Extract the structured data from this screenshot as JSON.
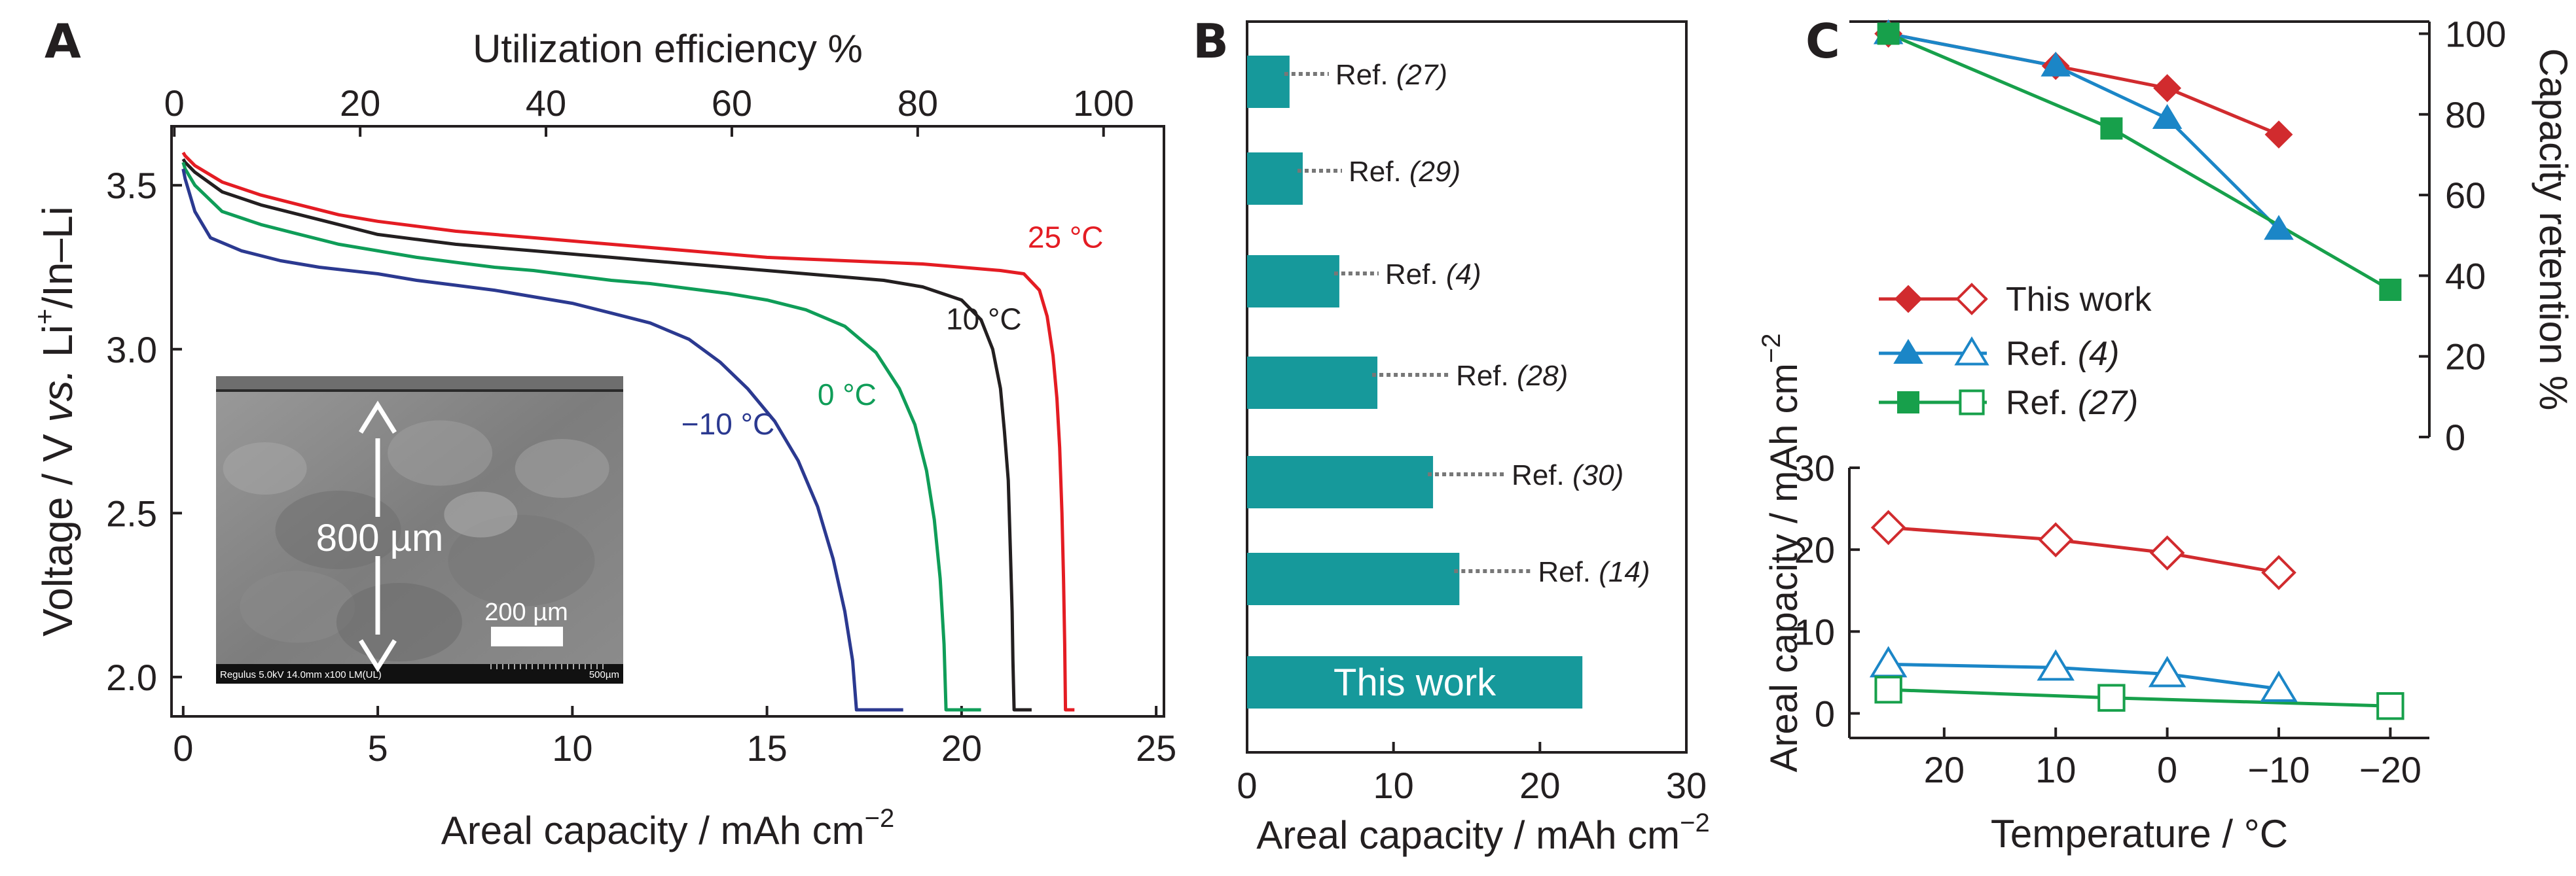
{
  "chart_data": [
    {
      "panel": "A",
      "type": "line",
      "xlabel": "Areal capacity / mAh cm",
      "xlabel_sup": "−2",
      "x2label": "Utilization efficiency %",
      "ylabel_pre": "Voltage / V ",
      "ylabel_vs": "vs.",
      "ylabel_mid": " Li",
      "ylabel_sup": "+",
      "ylabel_post": "/In–Li",
      "xlim": [
        -0.3,
        25.2
      ],
      "ylim": [
        1.88,
        3.68
      ],
      "x2lim": [
        -0.3,
        106.5
      ],
      "xticks": [
        0,
        5,
        10,
        15,
        20,
        25
      ],
      "x2ticks": [
        0,
        20,
        40,
        60,
        80,
        100
      ],
      "yticks": [
        2.0,
        2.5,
        3.0,
        3.5
      ],
      "series": [
        {
          "name": "25 °C",
          "color": "#e41c23",
          "label": "25 °C",
          "label_x": 21.7,
          "label_y": 3.31,
          "points": [
            [
              0,
              3.6
            ],
            [
              0.05,
              3.59
            ],
            [
              0.3,
              3.56
            ],
            [
              1,
              3.51
            ],
            [
              2,
              3.47
            ],
            [
              3,
              3.44
            ],
            [
              4,
              3.41
            ],
            [
              5,
              3.39
            ],
            [
              6,
              3.375
            ],
            [
              7,
              3.36
            ],
            [
              8,
              3.35
            ],
            [
              9,
              3.34
            ],
            [
              10,
              3.33
            ],
            [
              11,
              3.32
            ],
            [
              12,
              3.31
            ],
            [
              13,
              3.3
            ],
            [
              14,
              3.29
            ],
            [
              15,
              3.28
            ],
            [
              16,
              3.275
            ],
            [
              17,
              3.27
            ],
            [
              18,
              3.265
            ],
            [
              19,
              3.26
            ],
            [
              20,
              3.25
            ],
            [
              21,
              3.24
            ],
            [
              21.6,
              3.23
            ],
            [
              22,
              3.18
            ],
            [
              22.2,
              3.1
            ],
            [
              22.35,
              2.98
            ],
            [
              22.45,
              2.85
            ],
            [
              22.52,
              2.7
            ],
            [
              22.58,
              2.5
            ],
            [
              22.62,
              2.3
            ],
            [
              22.65,
              2.1
            ],
            [
              22.67,
              1.9
            ],
            [
              22.9,
              1.9
            ]
          ]
        },
        {
          "name": "10 °C",
          "color": "#231f20",
          "label": "10 °C",
          "label_x": 19.6,
          "label_y": 3.06,
          "points": [
            [
              0,
              3.58
            ],
            [
              0.05,
              3.57
            ],
            [
              0.3,
              3.54
            ],
            [
              1,
              3.48
            ],
            [
              2,
              3.44
            ],
            [
              3,
              3.41
            ],
            [
              4,
              3.38
            ],
            [
              5,
              3.35
            ],
            [
              6,
              3.335
            ],
            [
              7,
              3.32
            ],
            [
              8,
              3.31
            ],
            [
              9,
              3.3
            ],
            [
              10,
              3.29
            ],
            [
              11,
              3.28
            ],
            [
              12,
              3.27
            ],
            [
              13,
              3.26
            ],
            [
              14,
              3.25
            ],
            [
              15,
              3.24
            ],
            [
              16,
              3.23
            ],
            [
              17,
              3.22
            ],
            [
              18,
              3.21
            ],
            [
              19,
              3.19
            ],
            [
              20,
              3.15
            ],
            [
              20.5,
              3.09
            ],
            [
              20.8,
              3.0
            ],
            [
              21.0,
              2.88
            ],
            [
              21.1,
              2.75
            ],
            [
              21.2,
              2.6
            ],
            [
              21.25,
              2.4
            ],
            [
              21.3,
              2.2
            ],
            [
              21.32,
              2.05
            ],
            [
              21.35,
              1.9
            ],
            [
              21.8,
              1.9
            ]
          ]
        },
        {
          "name": "0 °C",
          "color": "#0f9d58",
          "label": "0 °C",
          "label_x": 16.3,
          "label_y": 2.83,
          "points": [
            [
              0,
              3.57
            ],
            [
              0.05,
              3.55
            ],
            [
              0.3,
              3.5
            ],
            [
              1,
              3.42
            ],
            [
              2,
              3.38
            ],
            [
              3,
              3.35
            ],
            [
              4,
              3.32
            ],
            [
              5,
              3.3
            ],
            [
              6,
              3.28
            ],
            [
              7,
              3.265
            ],
            [
              8,
              3.25
            ],
            [
              9,
              3.24
            ],
            [
              10,
              3.225
            ],
            [
              11,
              3.21
            ],
            [
              12,
              3.2
            ],
            [
              13,
              3.185
            ],
            [
              14,
              3.17
            ],
            [
              15,
              3.15
            ],
            [
              16,
              3.12
            ],
            [
              17,
              3.07
            ],
            [
              17.8,
              2.99
            ],
            [
              18.4,
              2.88
            ],
            [
              18.8,
              2.77
            ],
            [
              19.1,
              2.63
            ],
            [
              19.3,
              2.48
            ],
            [
              19.45,
              2.3
            ],
            [
              19.55,
              2.1
            ],
            [
              19.6,
              1.9
            ],
            [
              20.5,
              1.9
            ]
          ]
        },
        {
          "name": "−10 °C",
          "color": "#2b3990",
          "label": "−10 °C",
          "label_x": 12.8,
          "label_y": 2.74,
          "points": [
            [
              0,
              3.55
            ],
            [
              0.05,
              3.52
            ],
            [
              0.3,
              3.42
            ],
            [
              0.7,
              3.34
            ],
            [
              1.5,
              3.3
            ],
            [
              2.5,
              3.27
            ],
            [
              3.5,
              3.25
            ],
            [
              5,
              3.23
            ],
            [
              6,
              3.21
            ],
            [
              7,
              3.195
            ],
            [
              8,
              3.18
            ],
            [
              9,
              3.16
            ],
            [
              10,
              3.14
            ],
            [
              11,
              3.11
            ],
            [
              12,
              3.08
            ],
            [
              13,
              3.03
            ],
            [
              13.8,
              2.96
            ],
            [
              14.5,
              2.88
            ],
            [
              15.2,
              2.78
            ],
            [
              15.8,
              2.66
            ],
            [
              16.3,
              2.52
            ],
            [
              16.7,
              2.36
            ],
            [
              17.0,
              2.2
            ],
            [
              17.2,
              2.05
            ],
            [
              17.3,
              1.9
            ],
            [
              18.5,
              1.9
            ]
          ]
        }
      ],
      "inset": {
        "scale_label": "800 µm",
        "scalebar_label": "200 µm",
        "sem_footer_left": "Regulus 5.0kV 14.0mm x100 LM(UL)",
        "sem_footer_right": "500µm"
      }
    },
    {
      "panel": "B",
      "type": "bar",
      "orientation": "horizontal",
      "xlabel": "Areal capacity / mAh cm",
      "xlabel_sup": "−2",
      "xlim": [
        0,
        30
      ],
      "xticks": [
        0,
        10,
        20,
        30
      ],
      "bar_color": "#16999b",
      "categories": [
        {
          "pre": "Ref. ",
          "num": "(27)",
          "value": 2.9
        },
        {
          "pre": "Ref. ",
          "num": "(29)",
          "value": 3.8
        },
        {
          "pre": "Ref. ",
          "num": "(4)",
          "value": 6.3
        },
        {
          "pre": "Ref. ",
          "num": "(28)",
          "value": 8.9
        },
        {
          "pre": "Ref. ",
          "num": "(30)",
          "value": 12.7
        },
        {
          "pre": "Ref. ",
          "num": "(14)",
          "value": 14.5
        },
        {
          "pre": "",
          "num": "",
          "value": 22.9,
          "inside_label": "This work"
        }
      ]
    },
    {
      "panel": "C",
      "type": "line",
      "xlabel": "Temperature / °C",
      "xlim": [
        28.5,
        -23.5
      ],
      "xticks": [
        20,
        10,
        0,
        -10,
        -20
      ],
      "xtick_labels": [
        "20",
        "10",
        "0",
        "−10",
        "−20"
      ],
      "top": {
        "ylabel": "Capacity retention %",
        "ylim": [
          0,
          103
        ],
        "yticks": [
          0,
          20,
          40,
          60,
          80,
          100
        ],
        "series": [
          {
            "name": "This work",
            "color": "#d12b2e",
            "marker": "diamond",
            "points": [
              [
                25,
                100
              ],
              [
                10,
                92
              ],
              [
                0,
                86.5
              ],
              [
                -10,
                75
              ]
            ]
          },
          {
            "name": "Ref. (4)",
            "color": "#1b86c7",
            "marker": "triangle",
            "points": [
              [
                25,
                100
              ],
              [
                10,
                92
              ],
              [
                0,
                79
              ],
              [
                -10,
                51.5
              ]
            ]
          },
          {
            "name": "Ref. (27)",
            "color": "#17a04b",
            "marker": "square",
            "points": [
              [
                25,
                100
              ],
              [
                5,
                76.5
              ],
              [
                -20,
                36.5
              ]
            ]
          }
        ]
      },
      "bottom": {
        "ylabel": "Areal capacity / mAh cm",
        "ylabel_sup": "−2",
        "ylim": [
          -3,
          30
        ],
        "yticks": [
          0,
          10,
          20,
          30
        ],
        "series": [
          {
            "name": "This work",
            "color": "#d12b2e",
            "marker": "diamond",
            "points": [
              [
                25,
                22.7
              ],
              [
                10,
                21.2
              ],
              [
                0,
                19.6
              ],
              [
                -10,
                17.2
              ]
            ]
          },
          {
            "name": "Ref. (4)",
            "color": "#1b86c7",
            "marker": "triangle",
            "points": [
              [
                25,
                6.0
              ],
              [
                10,
                5.6
              ],
              [
                0,
                4.8
              ],
              [
                -10,
                3.0
              ]
            ]
          },
          {
            "name": "Ref. (27)",
            "color": "#17a04b",
            "marker": "square",
            "points": [
              [
                25,
                2.9
              ],
              [
                5,
                1.9
              ],
              [
                -20,
                0.9
              ]
            ]
          }
        ]
      },
      "legend": [
        {
          "pre": "This work",
          "num": "",
          "color": "#d12b2e",
          "marker": "diamond"
        },
        {
          "pre": "Ref. ",
          "num": "(4)",
          "color": "#1b86c7",
          "marker": "triangle"
        },
        {
          "pre": "Ref. ",
          "num": "(27)",
          "color": "#17a04b",
          "marker": "square"
        }
      ]
    }
  ],
  "panel_labels": {
    "a": "A",
    "b": "B",
    "c": "C"
  }
}
